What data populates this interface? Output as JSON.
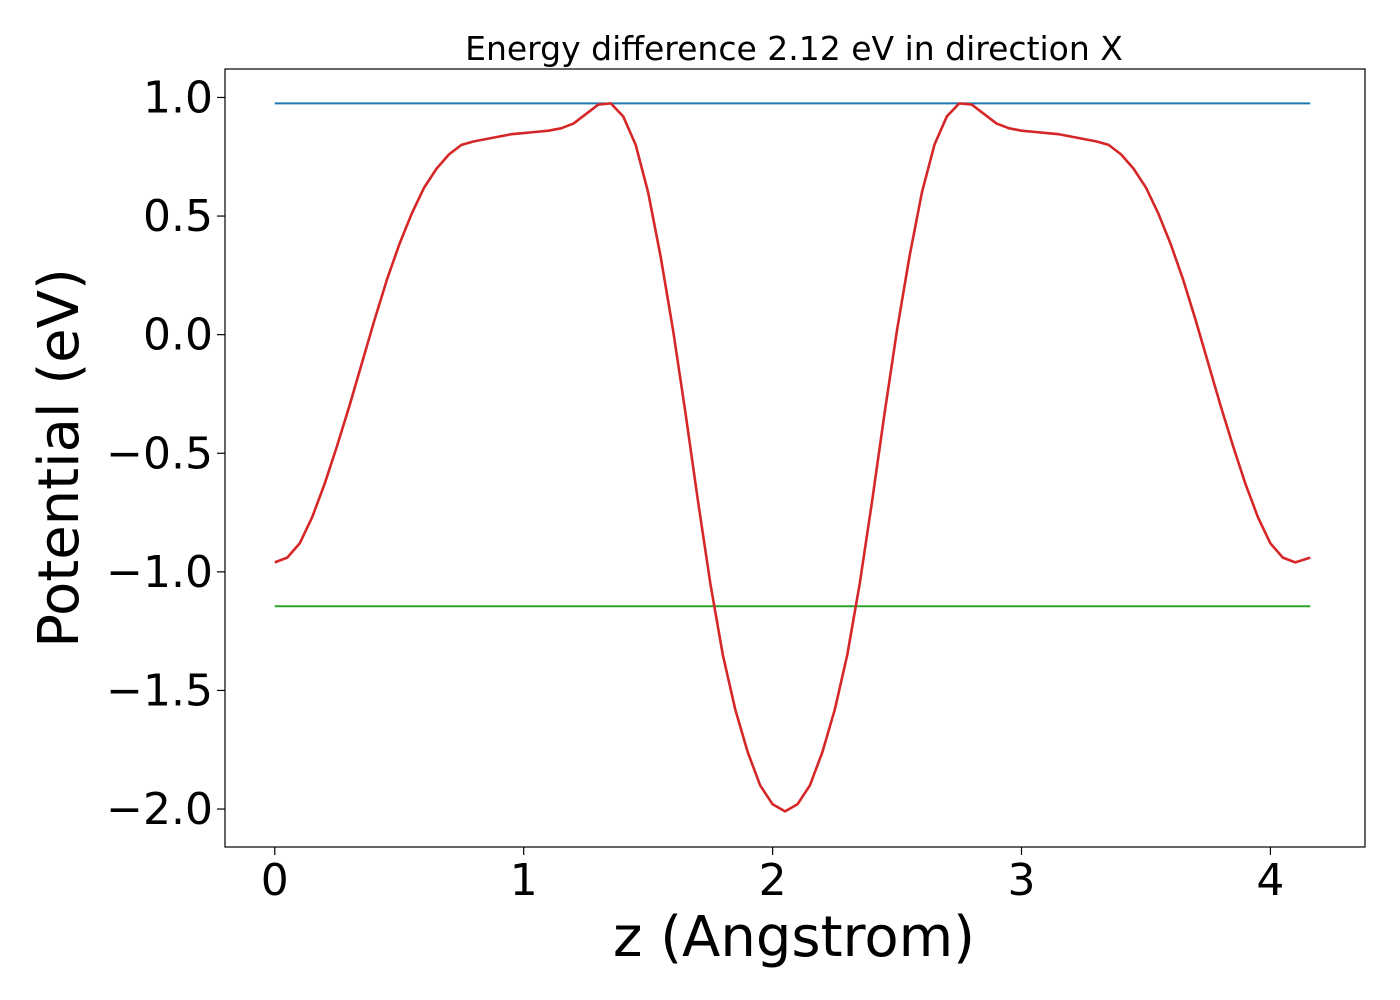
{
  "chart_data": {
    "type": "line",
    "title": "Energy difference 2.12 eV in direction X",
    "xlabel": "z (Angstrom)",
    "ylabel": "Potential (eV)",
    "xlim": [
      -0.2,
      4.38
    ],
    "ylim": [
      -2.16,
      1.12
    ],
    "x_ticks": [
      0,
      1,
      2,
      3,
      4
    ],
    "x_tick_labels": [
      "0",
      "1",
      "2",
      "3",
      "4"
    ],
    "y_ticks": [
      1.0,
      0.5,
      0.0,
      -0.5,
      -1.0,
      -1.5,
      -2.0
    ],
    "y_tick_labels": [
      "1.0",
      "0.5",
      "0.0",
      "−0.5",
      "−1.0",
      "−1.5",
      "−2.0"
    ],
    "grid": false,
    "series": [
      {
        "color": "#1f77b4",
        "x": [
          0,
          4.16
        ],
        "y": [
          0.975,
          0.975
        ]
      },
      {
        "color": "#2ca02c",
        "x": [
          0,
          4.16
        ],
        "y": [
          -1.145,
          -1.145
        ]
      },
      {
        "color": "#d62728",
        "x": [
          0.0,
          0.05,
          0.1,
          0.15,
          0.2,
          0.25,
          0.3,
          0.35,
          0.4,
          0.45,
          0.5,
          0.55,
          0.6,
          0.65,
          0.7,
          0.75,
          0.8,
          0.85,
          0.9,
          0.95,
          1.0,
          1.05,
          1.1,
          1.15,
          1.2,
          1.25,
          1.3,
          1.35,
          1.4,
          1.45,
          1.5,
          1.55,
          1.6,
          1.65,
          1.7,
          1.75,
          1.8,
          1.85,
          1.9,
          1.95,
          2.0,
          2.05,
          2.1,
          2.15,
          2.2,
          2.25,
          2.3,
          2.35,
          2.4,
          2.45,
          2.5,
          2.55,
          2.6,
          2.65,
          2.7,
          2.75,
          2.8,
          2.85,
          2.9,
          2.95,
          3.0,
          3.05,
          3.1,
          3.15,
          3.2,
          3.25,
          3.3,
          3.35,
          3.4,
          3.45,
          3.5,
          3.55,
          3.6,
          3.65,
          3.7,
          3.75,
          3.8,
          3.85,
          3.9,
          3.95,
          4.0,
          4.05,
          4.1,
          4.16
        ],
        "y": [
          -0.96,
          -0.94,
          -0.88,
          -0.77,
          -0.63,
          -0.47,
          -0.3,
          -0.12,
          0.06,
          0.23,
          0.38,
          0.51,
          0.62,
          0.7,
          0.76,
          0.8,
          0.815,
          0.825,
          0.835,
          0.845,
          0.85,
          0.855,
          0.86,
          0.87,
          0.89,
          0.93,
          0.97,
          0.975,
          0.92,
          0.8,
          0.6,
          0.33,
          0.02,
          -0.33,
          -0.7,
          -1.05,
          -1.35,
          -1.58,
          -1.76,
          -1.9,
          -1.98,
          -2.01,
          -1.98,
          -1.9,
          -1.76,
          -1.58,
          -1.35,
          -1.05,
          -0.7,
          -0.33,
          0.02,
          0.33,
          0.6,
          0.8,
          0.92,
          0.975,
          0.97,
          0.93,
          0.89,
          0.87,
          0.86,
          0.855,
          0.85,
          0.845,
          0.835,
          0.825,
          0.815,
          0.8,
          0.76,
          0.7,
          0.62,
          0.51,
          0.38,
          0.23,
          0.06,
          -0.12,
          -0.3,
          -0.47,
          -0.63,
          -0.77,
          -0.88,
          -0.94,
          -0.96,
          -0.94
        ]
      }
    ]
  }
}
